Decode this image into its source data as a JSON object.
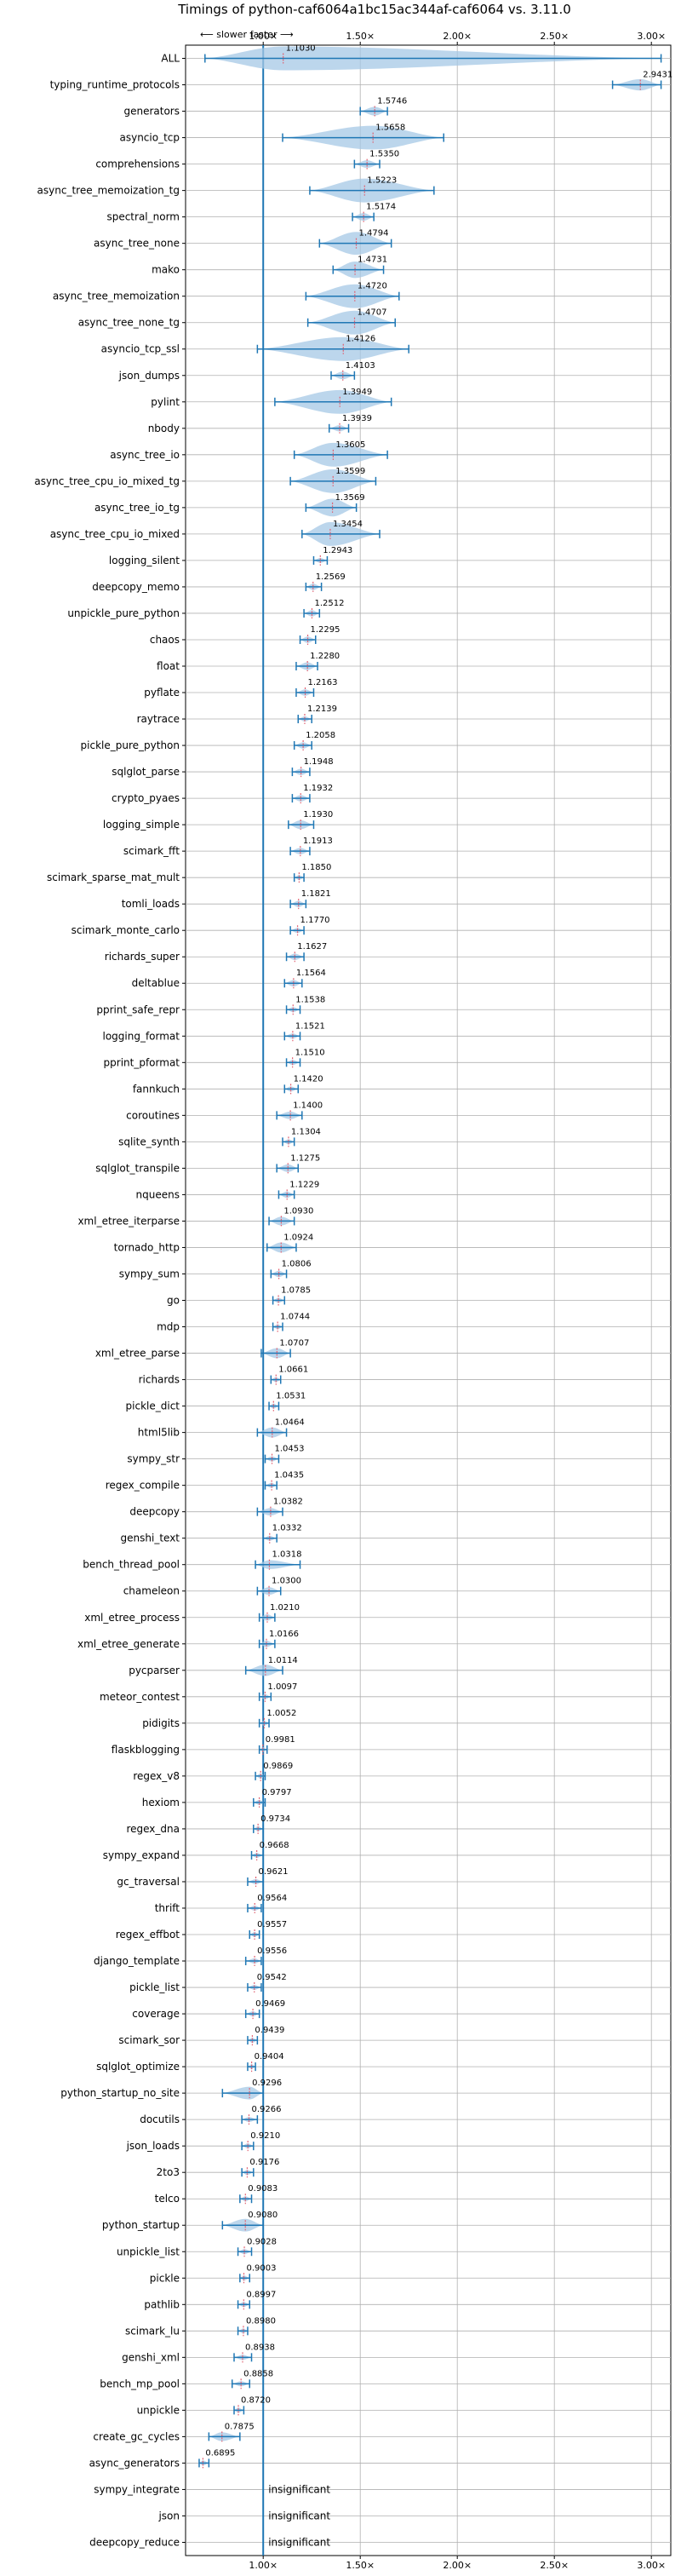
{
  "chart_data": {
    "type": "violin",
    "title": "Timings of python-caf6064a1bc15ac344af-caf6064 vs. 3.11.0",
    "top_annotation": "⟵ slower   faster ⟶",
    "xlim": [
      0.6,
      3.1
    ],
    "x_ticks": [
      1.0,
      1.5,
      2.0,
      2.5,
      3.0
    ],
    "x_tick_labels": [
      "1.00×",
      "1.50×",
      "2.00×",
      "2.50×",
      "3.00×"
    ],
    "reference_line": 1.0,
    "grid": true,
    "colors": {
      "violin": "#a6c8e6",
      "line": "#1f77b4",
      "median": "#e06070"
    },
    "benchmarks": [
      {
        "name": "ALL",
        "value": 1.103,
        "label": "1.1030",
        "lo": 0.7,
        "hi": 3.05,
        "width": 0.22
      },
      {
        "name": "typing_runtime_protocols",
        "value": 2.9431,
        "label": "2.9431",
        "lo": 2.8,
        "hi": 3.05,
        "width": 0.09
      },
      {
        "name": "generators",
        "value": 1.5746,
        "label": "1.5746",
        "lo": 1.5,
        "hi": 1.64,
        "width": 0.07
      },
      {
        "name": "asyncio_tcp",
        "value": 1.5658,
        "label": "1.5658",
        "lo": 1.1,
        "hi": 1.93,
        "width": 0.28
      },
      {
        "name": "comprehensions",
        "value": 1.535,
        "label": "1.5350",
        "lo": 1.47,
        "hi": 1.6,
        "width": 0.06
      },
      {
        "name": "async_tree_memoization_tg",
        "value": 1.5223,
        "label": "1.5223",
        "lo": 1.24,
        "hi": 1.88,
        "width": 0.32
      },
      {
        "name": "spectral_norm",
        "value": 1.5174,
        "label": "1.5174",
        "lo": 1.46,
        "hi": 1.57,
        "width": 0.06
      },
      {
        "name": "async_tree_none",
        "value": 1.4794,
        "label": "1.4794",
        "lo": 1.29,
        "hi": 1.66,
        "width": 0.18
      },
      {
        "name": "mako",
        "value": 1.4731,
        "label": "1.4731",
        "lo": 1.36,
        "hi": 1.62,
        "width": 0.13
      },
      {
        "name": "async_tree_memoization",
        "value": 1.472,
        "label": "1.4720",
        "lo": 1.22,
        "hi": 1.7,
        "width": 0.24
      },
      {
        "name": "async_tree_none_tg",
        "value": 1.4707,
        "label": "1.4707",
        "lo": 1.23,
        "hi": 1.68,
        "width": 0.22
      },
      {
        "name": "asyncio_tcp_ssl",
        "value": 1.4126,
        "label": "1.4126",
        "lo": 0.97,
        "hi": 1.75,
        "width": 0.28
      },
      {
        "name": "json_dumps",
        "value": 1.4103,
        "label": "1.4103",
        "lo": 1.35,
        "hi": 1.47,
        "width": 0.06
      },
      {
        "name": "pylint",
        "value": 1.3949,
        "label": "1.3949",
        "lo": 1.06,
        "hi": 1.66,
        "width": 0.28
      },
      {
        "name": "nbody",
        "value": 1.3939,
        "label": "1.3939",
        "lo": 1.34,
        "hi": 1.44,
        "width": 0.05
      },
      {
        "name": "async_tree_io",
        "value": 1.3605,
        "label": "1.3605",
        "lo": 1.16,
        "hi": 1.64,
        "width": 0.26
      },
      {
        "name": "async_tree_cpu_io_mixed_tg",
        "value": 1.3599,
        "label": "1.3599",
        "lo": 1.14,
        "hi": 1.58,
        "width": 0.22
      },
      {
        "name": "async_tree_io_tg",
        "value": 1.3569,
        "label": "1.3569",
        "lo": 1.22,
        "hi": 1.48,
        "width": 0.14
      },
      {
        "name": "async_tree_cpu_io_mixed",
        "value": 1.3454,
        "label": "1.3454",
        "lo": 1.2,
        "hi": 1.6,
        "width": 0.2
      },
      {
        "name": "logging_silent",
        "value": 1.2943,
        "label": "1.2943",
        "lo": 1.26,
        "hi": 1.33,
        "width": 0.04
      },
      {
        "name": "deepcopy_memo",
        "value": 1.2569,
        "label": "1.2569",
        "lo": 1.22,
        "hi": 1.3,
        "width": 0.05
      },
      {
        "name": "unpickle_pure_python",
        "value": 1.2512,
        "label": "1.2512",
        "lo": 1.21,
        "hi": 1.29,
        "width": 0.05
      },
      {
        "name": "chaos",
        "value": 1.2295,
        "label": "1.2295",
        "lo": 1.19,
        "hi": 1.27,
        "width": 0.05
      },
      {
        "name": "float",
        "value": 1.228,
        "label": "1.2280",
        "lo": 1.17,
        "hi": 1.28,
        "width": 0.06
      },
      {
        "name": "pyflate",
        "value": 1.2163,
        "label": "1.2163",
        "lo": 1.17,
        "hi": 1.26,
        "width": 0.05
      },
      {
        "name": "raytrace",
        "value": 1.2139,
        "label": "1.2139",
        "lo": 1.18,
        "hi": 1.25,
        "width": 0.04
      },
      {
        "name": "pickle_pure_python",
        "value": 1.2058,
        "label": "1.2058",
        "lo": 1.16,
        "hi": 1.25,
        "width": 0.05
      },
      {
        "name": "sqlglot_parse",
        "value": 1.1948,
        "label": "1.1948",
        "lo": 1.15,
        "hi": 1.24,
        "width": 0.05
      },
      {
        "name": "crypto_pyaes",
        "value": 1.1932,
        "label": "1.1932",
        "lo": 1.15,
        "hi": 1.24,
        "width": 0.05
      },
      {
        "name": "logging_simple",
        "value": 1.193,
        "label": "1.1930",
        "lo": 1.13,
        "hi": 1.26,
        "width": 0.07
      },
      {
        "name": "scimark_fft",
        "value": 1.1913,
        "label": "1.1913",
        "lo": 1.14,
        "hi": 1.24,
        "width": 0.05
      },
      {
        "name": "scimark_sparse_mat_mult",
        "value": 1.185,
        "label": "1.1850",
        "lo": 1.16,
        "hi": 1.21,
        "width": 0.03
      },
      {
        "name": "tomli_loads",
        "value": 1.1821,
        "label": "1.1821",
        "lo": 1.14,
        "hi": 1.22,
        "width": 0.05
      },
      {
        "name": "scimark_monte_carlo",
        "value": 1.177,
        "label": "1.1770",
        "lo": 1.14,
        "hi": 1.21,
        "width": 0.04
      },
      {
        "name": "richards_super",
        "value": 1.1627,
        "label": "1.1627",
        "lo": 1.12,
        "hi": 1.21,
        "width": 0.05
      },
      {
        "name": "deltablue",
        "value": 1.1564,
        "label": "1.1564",
        "lo": 1.11,
        "hi": 1.2,
        "width": 0.05
      },
      {
        "name": "pprint_safe_repr",
        "value": 1.1538,
        "label": "1.1538",
        "lo": 1.12,
        "hi": 1.19,
        "width": 0.04
      },
      {
        "name": "logging_format",
        "value": 1.1521,
        "label": "1.1521",
        "lo": 1.11,
        "hi": 1.19,
        "width": 0.04
      },
      {
        "name": "pprint_pformat",
        "value": 1.151,
        "label": "1.1510",
        "lo": 1.12,
        "hi": 1.19,
        "width": 0.04
      },
      {
        "name": "fannkuch",
        "value": 1.142,
        "label": "1.1420",
        "lo": 1.11,
        "hi": 1.18,
        "width": 0.04
      },
      {
        "name": "coroutines",
        "value": 1.14,
        "label": "1.1400",
        "lo": 1.07,
        "hi": 1.2,
        "width": 0.06
      },
      {
        "name": "sqlite_synth",
        "value": 1.1304,
        "label": "1.1304",
        "lo": 1.1,
        "hi": 1.16,
        "width": 0.04
      },
      {
        "name": "sqlglot_transpile",
        "value": 1.1275,
        "label": "1.1275",
        "lo": 1.07,
        "hi": 1.18,
        "width": 0.06
      },
      {
        "name": "nqueens",
        "value": 1.1229,
        "label": "1.1229",
        "lo": 1.08,
        "hi": 1.16,
        "width": 0.05
      },
      {
        "name": "xml_etree_iterparse",
        "value": 1.093,
        "label": "1.0930",
        "lo": 1.03,
        "hi": 1.16,
        "width": 0.07
      },
      {
        "name": "tornado_http",
        "value": 1.0924,
        "label": "1.0924",
        "lo": 1.02,
        "hi": 1.17,
        "width": 0.08
      },
      {
        "name": "sympy_sum",
        "value": 1.0806,
        "label": "1.0806",
        "lo": 1.04,
        "hi": 1.12,
        "width": 0.05
      },
      {
        "name": "go",
        "value": 1.0785,
        "label": "1.0785",
        "lo": 1.05,
        "hi": 1.11,
        "width": 0.04
      },
      {
        "name": "mdp",
        "value": 1.0744,
        "label": "1.0744",
        "lo": 1.05,
        "hi": 1.1,
        "width": 0.03
      },
      {
        "name": "xml_etree_parse",
        "value": 1.0707,
        "label": "1.0707",
        "lo": 0.99,
        "hi": 1.14,
        "width": 0.08
      },
      {
        "name": "richards",
        "value": 1.0661,
        "label": "1.0661",
        "lo": 1.04,
        "hi": 1.09,
        "width": 0.03
      },
      {
        "name": "pickle_dict",
        "value": 1.0531,
        "label": "1.0531",
        "lo": 1.03,
        "hi": 1.08,
        "width": 0.03
      },
      {
        "name": "html5lib",
        "value": 1.0464,
        "label": "1.0464",
        "lo": 0.97,
        "hi": 1.12,
        "width": 0.08
      },
      {
        "name": "sympy_str",
        "value": 1.0453,
        "label": "1.0453",
        "lo": 1.01,
        "hi": 1.08,
        "width": 0.04
      },
      {
        "name": "regex_compile",
        "value": 1.0435,
        "label": "1.0435",
        "lo": 1.01,
        "hi": 1.07,
        "width": 0.04
      },
      {
        "name": "deepcopy",
        "value": 1.0382,
        "label": "1.0382",
        "lo": 0.97,
        "hi": 1.1,
        "width": 0.06
      },
      {
        "name": "genshi_text",
        "value": 1.0332,
        "label": "1.0332",
        "lo": 1.0,
        "hi": 1.07,
        "width": 0.04
      },
      {
        "name": "bench_thread_pool",
        "value": 1.0318,
        "label": "1.0318",
        "lo": 0.96,
        "hi": 1.19,
        "width": 0.07
      },
      {
        "name": "chameleon",
        "value": 1.03,
        "label": "1.0300",
        "lo": 0.97,
        "hi": 1.09,
        "width": 0.06
      },
      {
        "name": "xml_etree_process",
        "value": 1.021,
        "label": "1.0210",
        "lo": 0.98,
        "hi": 1.06,
        "width": 0.05
      },
      {
        "name": "xml_etree_generate",
        "value": 1.0166,
        "label": "1.0166",
        "lo": 0.98,
        "hi": 1.06,
        "width": 0.05
      },
      {
        "name": "pycparser",
        "value": 1.0114,
        "label": "1.0114",
        "lo": 0.91,
        "hi": 1.1,
        "width": 0.09
      },
      {
        "name": "meteor_contest",
        "value": 1.0097,
        "label": "1.0097",
        "lo": 0.98,
        "hi": 1.04,
        "width": 0.03
      },
      {
        "name": "pidigits",
        "value": 1.0052,
        "label": "1.0052",
        "lo": 0.98,
        "hi": 1.03,
        "width": 0.03
      },
      {
        "name": "flaskblogging",
        "value": 0.9981,
        "label": "0.9981",
        "lo": 0.98,
        "hi": 1.02,
        "width": 0.02
      },
      {
        "name": "regex_v8",
        "value": 0.9869,
        "label": "0.9869",
        "lo": 0.96,
        "hi": 1.01,
        "width": 0.03
      },
      {
        "name": "hexiom",
        "value": 0.9797,
        "label": "0.9797",
        "lo": 0.95,
        "hi": 1.01,
        "width": 0.03
      },
      {
        "name": "regex_dna",
        "value": 0.9734,
        "label": "0.9734",
        "lo": 0.95,
        "hi": 1.0,
        "width": 0.03
      },
      {
        "name": "sympy_expand",
        "value": 0.9668,
        "label": "0.9668",
        "lo": 0.94,
        "hi": 1.0,
        "width": 0.03
      },
      {
        "name": "gc_traversal",
        "value": 0.9621,
        "label": "0.9621",
        "lo": 0.92,
        "hi": 1.0,
        "width": 0.04
      },
      {
        "name": "thrift",
        "value": 0.9564,
        "label": "0.9564",
        "lo": 0.92,
        "hi": 0.99,
        "width": 0.04
      },
      {
        "name": "regex_effbot",
        "value": 0.9557,
        "label": "0.9557",
        "lo": 0.93,
        "hi": 0.98,
        "width": 0.03
      },
      {
        "name": "django_template",
        "value": 0.9556,
        "label": "0.9556",
        "lo": 0.91,
        "hi": 0.99,
        "width": 0.04
      },
      {
        "name": "pickle_list",
        "value": 0.9542,
        "label": "0.9542",
        "lo": 0.92,
        "hi": 0.99,
        "width": 0.04
      },
      {
        "name": "coverage",
        "value": 0.9469,
        "label": "0.9469",
        "lo": 0.91,
        "hi": 0.98,
        "width": 0.04
      },
      {
        "name": "scimark_sor",
        "value": 0.9439,
        "label": "0.9439",
        "lo": 0.92,
        "hi": 0.97,
        "width": 0.03
      },
      {
        "name": "sqlglot_optimize",
        "value": 0.9404,
        "label": "0.9404",
        "lo": 0.92,
        "hi": 0.96,
        "width": 0.02
      },
      {
        "name": "python_startup_no_site",
        "value": 0.9296,
        "label": "0.9296",
        "lo": 0.79,
        "hi": 1.0,
        "width": 0.1
      },
      {
        "name": "docutils",
        "value": 0.9266,
        "label": "0.9266",
        "lo": 0.89,
        "hi": 0.97,
        "width": 0.04
      },
      {
        "name": "json_loads",
        "value": 0.921,
        "label": "0.9210",
        "lo": 0.89,
        "hi": 0.95,
        "width": 0.03
      },
      {
        "name": "2to3",
        "value": 0.9176,
        "label": "0.9176",
        "lo": 0.89,
        "hi": 0.95,
        "width": 0.03
      },
      {
        "name": "telco",
        "value": 0.9083,
        "label": "0.9083",
        "lo": 0.88,
        "hi": 0.94,
        "width": 0.03
      },
      {
        "name": "python_startup",
        "value": 0.908,
        "label": "0.9080",
        "lo": 0.79,
        "hi": 1.0,
        "width": 0.1
      },
      {
        "name": "unpickle_list",
        "value": 0.9028,
        "label": "0.9028",
        "lo": 0.87,
        "hi": 0.94,
        "width": 0.04
      },
      {
        "name": "pickle",
        "value": 0.9003,
        "label": "0.9003",
        "lo": 0.88,
        "hi": 0.93,
        "width": 0.03
      },
      {
        "name": "pathlib",
        "value": 0.8997,
        "label": "0.8997",
        "lo": 0.87,
        "hi": 0.93,
        "width": 0.03
      },
      {
        "name": "scimark_lu",
        "value": 0.898,
        "label": "0.8980",
        "lo": 0.87,
        "hi": 0.92,
        "width": 0.03
      },
      {
        "name": "genshi_xml",
        "value": 0.8938,
        "label": "0.8938",
        "lo": 0.85,
        "hi": 0.94,
        "width": 0.04
      },
      {
        "name": "bench_mp_pool",
        "value": 0.8858,
        "label": "0.8858",
        "lo": 0.84,
        "hi": 0.93,
        "width": 0.04
      },
      {
        "name": "unpickle",
        "value": 0.872,
        "label": "0.8720",
        "lo": 0.85,
        "hi": 0.9,
        "width": 0.03
      },
      {
        "name": "create_gc_cycles",
        "value": 0.7875,
        "label": "0.7875",
        "lo": 0.72,
        "hi": 0.88,
        "width": 0.07
      },
      {
        "name": "async_generators",
        "value": 0.6895,
        "label": "0.6895",
        "lo": 0.67,
        "hi": 0.72,
        "width": 0.02
      },
      {
        "name": "sympy_integrate",
        "insignificant": true,
        "label": "insignificant"
      },
      {
        "name": "json",
        "insignificant": true,
        "label": "insignificant"
      },
      {
        "name": "deepcopy_reduce",
        "insignificant": true,
        "label": "insignificant"
      }
    ]
  }
}
